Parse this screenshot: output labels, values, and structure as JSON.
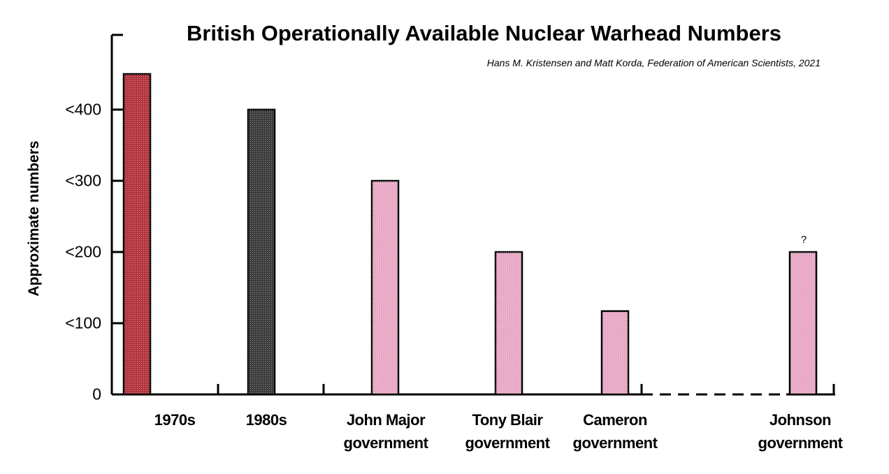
{
  "chart_data": {
    "type": "bar",
    "title": "British Operationally Available Nuclear Warhead Numbers",
    "subtitle": "Hans M. Kristensen and Matt Korda, Federation of American Scientists, 2021",
    "xlabel": "",
    "ylabel": "Approximate numbers",
    "ylim": [
      0,
      450
    ],
    "yticks": [
      "0",
      "<100",
      "<200",
      "<300",
      "<400"
    ],
    "ytick_values": [
      0,
      100,
      200,
      300,
      400
    ],
    "grid": false,
    "legend": "none",
    "categories": [
      [
        "1970s"
      ],
      [
        "1980s"
      ],
      [
        "John Major",
        "government"
      ],
      [
        "Tony Blair",
        "government"
      ],
      [
        "Cameron",
        "government"
      ],
      [
        "Johnson",
        "government"
      ]
    ],
    "values": [
      450,
      400,
      300,
      200,
      117,
      200
    ],
    "bar_colors": [
      "#b3333c",
      "#3a3a3a",
      "#e7a7c4",
      "#e7a7c4",
      "#e7a7c4",
      "#e7a7c4"
    ],
    "annotations": [
      {
        "category_index": 5,
        "text": "?"
      }
    ]
  }
}
